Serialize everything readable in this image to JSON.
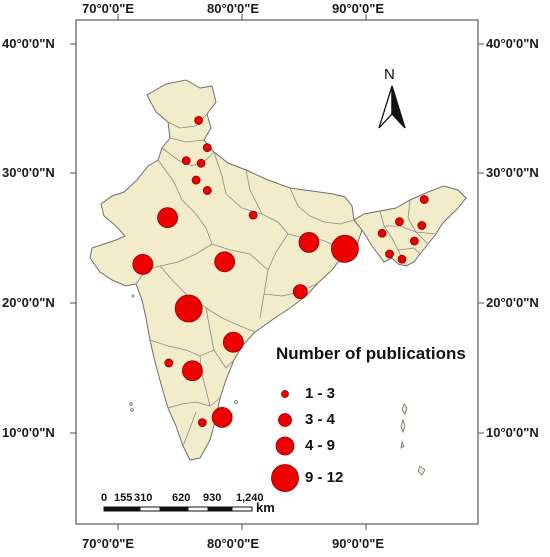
{
  "axes": {
    "top_longitude_labels": [
      "70°0'0\"E",
      "80°0'0\"E",
      "90°0'0\"E"
    ],
    "bottom_longitude_labels": [
      "70°0'0\"E",
      "80°0'0\"E",
      "90°0'0\"E"
    ],
    "left_latitude_labels": [
      "40°0'0\"N",
      "30°0'0\"N",
      "20°0'0\"N",
      "10°0'0\"N"
    ],
    "right_latitude_labels": [
      "40°0'0\"N",
      "30°0'0\"N",
      "20°0'0\"N",
      "10°0'0\"N"
    ]
  },
  "north_arrow": {
    "label": "N",
    "icon": "north-arrow-icon"
  },
  "legend": {
    "title": "Number of publications",
    "classes": [
      {
        "label": "1 - 3"
      },
      {
        "label": "3 - 4"
      },
      {
        "label": "4 - 9"
      },
      {
        "label": "9 - 12"
      }
    ]
  },
  "scale_bar": {
    "labels": [
      "0",
      "155",
      "310",
      "620",
      "930",
      "1,240"
    ],
    "unit": "km"
  },
  "colors": {
    "land": "#f3ecca",
    "border": "#707070",
    "marker": "#ee0000",
    "marker_outline": "#8a0000",
    "frame": "#7a7a7a"
  },
  "map_points": [
    {
      "lon": 76.5,
      "lat": 34.1,
      "class": 1
    },
    {
      "lon": 77.2,
      "lat": 32.0,
      "class": 1
    },
    {
      "lon": 76.7,
      "lat": 30.8,
      "class": 1
    },
    {
      "lon": 75.5,
      "lat": 31.0,
      "class": 1
    },
    {
      "lon": 76.3,
      "lat": 29.5,
      "class": 1
    },
    {
      "lon": 77.2,
      "lat": 28.7,
      "class": 1
    },
    {
      "lon": 80.9,
      "lat": 26.8,
      "class": 1
    },
    {
      "lon": 74.0,
      "lat": 26.6,
      "class": 3
    },
    {
      "lon": 72.0,
      "lat": 23.0,
      "class": 3
    },
    {
      "lon": 78.6,
      "lat": 23.2,
      "class": 3
    },
    {
      "lon": 85.4,
      "lat": 24.7,
      "class": 3
    },
    {
      "lon": 88.3,
      "lat": 24.2,
      "class": 4
    },
    {
      "lon": 84.7,
      "lat": 20.9,
      "class": 2
    },
    {
      "lon": 75.7,
      "lat": 19.6,
      "class": 4
    },
    {
      "lon": 79.3,
      "lat": 17.0,
      "class": 3
    },
    {
      "lon": 74.1,
      "lat": 15.4,
      "class": 1
    },
    {
      "lon": 76.0,
      "lat": 14.8,
      "class": 3
    },
    {
      "lon": 76.8,
      "lat": 10.8,
      "class": 1
    },
    {
      "lon": 78.4,
      "lat": 11.2,
      "class": 3
    },
    {
      "lon": 94.7,
      "lat": 28.0,
      "class": 1
    },
    {
      "lon": 92.7,
      "lat": 26.3,
      "class": 1
    },
    {
      "lon": 94.5,
      "lat": 26.0,
      "class": 1
    },
    {
      "lon": 91.3,
      "lat": 25.4,
      "class": 1
    },
    {
      "lon": 93.9,
      "lat": 24.8,
      "class": 1
    },
    {
      "lon": 91.9,
      "lat": 23.8,
      "class": 1
    },
    {
      "lon": 92.9,
      "lat": 23.4,
      "class": 1
    }
  ]
}
